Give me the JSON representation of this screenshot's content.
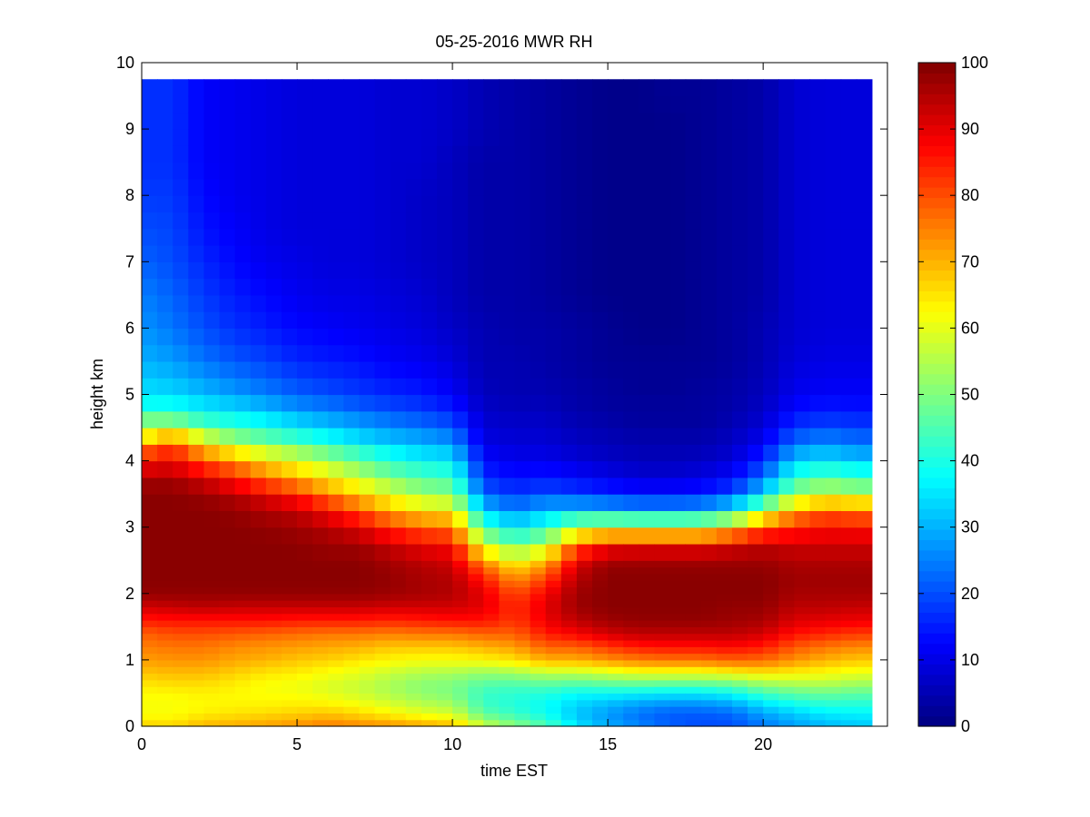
{
  "chart_data": {
    "type": "heatmap",
    "title": "05-25-2016 MWR RH",
    "xlabel": "time EST",
    "ylabel": "height km",
    "xlim": [
      0,
      24
    ],
    "ylim": [
      0,
      10
    ],
    "x_ticks": [
      0,
      5,
      10,
      15,
      20
    ],
    "y_ticks": [
      0,
      1,
      2,
      3,
      4,
      5,
      6,
      7,
      8,
      9,
      10
    ],
    "colorbar": {
      "colormap": "jet",
      "range": [
        0,
        100
      ],
      "ticks": [
        0,
        10,
        20,
        30,
        40,
        50,
        60,
        70,
        80,
        90,
        100
      ]
    },
    "time_start": 0,
    "time_step": 0.5,
    "time_count": 47,
    "height_top": 9.75,
    "profile_heights": [
      0,
      0.1,
      0.2,
      0.3,
      0.4,
      0.5,
      0.6,
      0.7,
      0.8,
      0.9,
      1.0,
      1.2,
      1.4,
      1.6,
      1.8,
      2.0,
      2.2,
      2.4,
      2.6,
      2.8,
      3.0,
      3.2,
      3.4,
      3.6,
      3.8,
      4.0,
      4.2,
      4.4,
      4.6,
      4.8,
      5.0,
      5.5,
      6.0,
      6.5,
      7.0,
      7.5,
      8.0,
      8.5,
      9.0,
      9.5
    ],
    "profiles": [
      {
        "time": 0,
        "rh": [
          68,
          64,
          62,
          62,
          62,
          63,
          64,
          66,
          68,
          70,
          72,
          75,
          78,
          85,
          92,
          98,
          99,
          99,
          99,
          99,
          99,
          99,
          99,
          98,
          93,
          87,
          75,
          60,
          50,
          40,
          35,
          30,
          27,
          25,
          22,
          20,
          18,
          17,
          17,
          17
        ]
      },
      {
        "time": 1,
        "rh": [
          67,
          64,
          62,
          62,
          62,
          63,
          65,
          67,
          69,
          71,
          73,
          76,
          80,
          86,
          93,
          98,
          99,
          99,
          99,
          99,
          99,
          99,
          99,
          98,
          94,
          89,
          82,
          68,
          50,
          40,
          34,
          28,
          24,
          22,
          20,
          19,
          18,
          17,
          17,
          17
        ]
      },
      {
        "time": 2,
        "rh": [
          70,
          67,
          64,
          63,
          63,
          64,
          65,
          67,
          69,
          71,
          73,
          76,
          80,
          86,
          94,
          98,
          99,
          99,
          99,
          99,
          99,
          99,
          98,
          95,
          88,
          80,
          68,
          55,
          43,
          36,
          31,
          24,
          20,
          18,
          16,
          14,
          13,
          12,
          12,
          12
        ]
      },
      {
        "time": 3,
        "rh": [
          71,
          68,
          65,
          64,
          63,
          63,
          64,
          65,
          67,
          69,
          71,
          74,
          79,
          86,
          93,
          98,
          99,
          99,
          99,
          99,
          99,
          98,
          96,
          90,
          82,
          73,
          60,
          48,
          40,
          34,
          28,
          21,
          17,
          15,
          13,
          12,
          11,
          11,
          11,
          11
        ]
      },
      {
        "time": 4,
        "rh": [
          72,
          69,
          66,
          64,
          63,
          62,
          62,
          63,
          65,
          67,
          70,
          73,
          78,
          86,
          93,
          98,
          99,
          99,
          99,
          99,
          98,
          96,
          92,
          84,
          74,
          66,
          54,
          44,
          37,
          31,
          25,
          19,
          15,
          13,
          11,
          10,
          10,
          10,
          10,
          10
        ]
      },
      {
        "time": 5,
        "rh": [
          74,
          70,
          67,
          65,
          63,
          62,
          61,
          62,
          64,
          66,
          68,
          72,
          77,
          85,
          93,
          98,
          99,
          99,
          99,
          98,
          97,
          94,
          88,
          78,
          68,
          60,
          50,
          40,
          33,
          27,
          22,
          16,
          13,
          11,
          10,
          9,
          9,
          9,
          9,
          9
        ]
      },
      {
        "time": 6,
        "rh": [
          76,
          72,
          68,
          65,
          62,
          60,
          59,
          60,
          62,
          64,
          67,
          71,
          76,
          85,
          93,
          98,
          99,
          99,
          98,
          97,
          94,
          89,
          80,
          70,
          62,
          54,
          45,
          36,
          30,
          25,
          20,
          15,
          12,
          10,
          9,
          9,
          9,
          9,
          9,
          9
        ]
      },
      {
        "time": 7,
        "rh": [
          75,
          70,
          66,
          63,
          60,
          58,
          57,
          58,
          60,
          62,
          65,
          70,
          76,
          85,
          93,
          98,
          99,
          99,
          98,
          95,
          90,
          82,
          72,
          63,
          55,
          48,
          40,
          32,
          27,
          22,
          18,
          14,
          11,
          10,
          9,
          9,
          9,
          9,
          9,
          9
        ]
      },
      {
        "time": 8,
        "rh": [
          74,
          68,
          63,
          60,
          57,
          55,
          54,
          55,
          57,
          60,
          63,
          68,
          75,
          84,
          92,
          97,
          98,
          97,
          95,
          90,
          83,
          73,
          64,
          56,
          48,
          42,
          35,
          29,
          24,
          20,
          16,
          12,
          10,
          9,
          8,
          8,
          8,
          8,
          8,
          8
        ]
      },
      {
        "time": 9,
        "rh": [
          72,
          66,
          60,
          57,
          54,
          52,
          51,
          52,
          55,
          58,
          62,
          68,
          76,
          85,
          92,
          96,
          96,
          95,
          92,
          86,
          78,
          68,
          58,
          50,
          44,
          38,
          32,
          27,
          22,
          18,
          15,
          11,
          9,
          8,
          7,
          7,
          7,
          8,
          8,
          8
        ]
      },
      {
        "time": 10,
        "rh": [
          70,
          64,
          58,
          55,
          52,
          50,
          50,
          51,
          54,
          58,
          62,
          68,
          76,
          86,
          92,
          95,
          95,
          93,
          90,
          84,
          76,
          66,
          56,
          48,
          42,
          36,
          30,
          24,
          19,
          15,
          12,
          9,
          7,
          6,
          6,
          6,
          6,
          6,
          7,
          7
        ]
      },
      {
        "time": 11,
        "rh": [
          58,
          52,
          47,
          44,
          43,
          43,
          45,
          48,
          52,
          57,
          63,
          70,
          78,
          86,
          90,
          90,
          86,
          78,
          67,
          55,
          45,
          35,
          27,
          20,
          16,
          13,
          11,
          9,
          8,
          7,
          6,
          5,
          5,
          4,
          4,
          4,
          4,
          4,
          5,
          5
        ]
      },
      {
        "time": 12,
        "rh": [
          52,
          47,
          43,
          41,
          41,
          42,
          44,
          48,
          53,
          59,
          65,
          72,
          78,
          82,
          83,
          80,
          74,
          66,
          56,
          45,
          36,
          28,
          21,
          16,
          13,
          11,
          9,
          8,
          7,
          6,
          5,
          5,
          4,
          4,
          4,
          4,
          4,
          4,
          4,
          4
        ]
      },
      {
        "time": 13,
        "rh": [
          46,
          42,
          39,
          38,
          39,
          41,
          45,
          50,
          56,
          63,
          70,
          78,
          85,
          89,
          90,
          88,
          82,
          74,
          64,
          52,
          42,
          33,
          25,
          18,
          14,
          11,
          9,
          8,
          7,
          6,
          5,
          4,
          4,
          3,
          3,
          3,
          3,
          3,
          3,
          3
        ]
      },
      {
        "time": 14,
        "rh": [
          36,
          33,
          32,
          33,
          35,
          38,
          43,
          49,
          56,
          63,
          70,
          78,
          88,
          94,
          97,
          97,
          95,
          92,
          85,
          72,
          55,
          38,
          24,
          16,
          12,
          9,
          7,
          6,
          5,
          4,
          4,
          3,
          3,
          2,
          2,
          2,
          2,
          2,
          2,
          2
        ]
      },
      {
        "time": 15,
        "rh": [
          30,
          28,
          28,
          30,
          33,
          38,
          44,
          51,
          58,
          65,
          73,
          82,
          92,
          97,
          99,
          99,
          99,
          98,
          93,
          80,
          58,
          38,
          22,
          14,
          10,
          7,
          6,
          5,
          4,
          3,
          3,
          2,
          2,
          1,
          1,
          1,
          1,
          1,
          1,
          1
        ]
      },
      {
        "time": 16,
        "rh": [
          26,
          24,
          24,
          27,
          31,
          37,
          44,
          52,
          60,
          68,
          75,
          85,
          94,
          98,
          99,
          99,
          99,
          98,
          94,
          80,
          58,
          36,
          20,
          12,
          8,
          6,
          5,
          4,
          3,
          3,
          2,
          2,
          1,
          1,
          1,
          1,
          1,
          1,
          1,
          1
        ]
      },
      {
        "time": 17,
        "rh": [
          22,
          21,
          22,
          25,
          30,
          36,
          43,
          52,
          60,
          68,
          76,
          86,
          94,
          98,
          99,
          99,
          99,
          98,
          94,
          80,
          58,
          36,
          20,
          12,
          8,
          6,
          5,
          4,
          3,
          3,
          2,
          2,
          1,
          1,
          1,
          1,
          1,
          1,
          1,
          2
        ]
      },
      {
        "time": 18,
        "rh": [
          20,
          20,
          22,
          25,
          30,
          36,
          43,
          52,
          60,
          68,
          76,
          86,
          94,
          98,
          99,
          99,
          99,
          98,
          94,
          80,
          58,
          37,
          21,
          13,
          9,
          7,
          5,
          4,
          3,
          3,
          3,
          2,
          2,
          2,
          2,
          2,
          2,
          2,
          2,
          2
        ]
      },
      {
        "time": 19,
        "rh": [
          20,
          21,
          23,
          27,
          32,
          38,
          45,
          53,
          62,
          70,
          78,
          87,
          94,
          97,
          98,
          99,
          99,
          98,
          95,
          85,
          65,
          44,
          27,
          17,
          12,
          9,
          7,
          6,
          5,
          4,
          4,
          3,
          3,
          3,
          3,
          3,
          3,
          3,
          3,
          3
        ]
      },
      {
        "time": 20,
        "rh": [
          24,
          26,
          29,
          33,
          38,
          44,
          50,
          57,
          64,
          71,
          77,
          85,
          92,
          96,
          98,
          99,
          99,
          98,
          96,
          90,
          78,
          60,
          42,
          30,
          22,
          17,
          13,
          10,
          8,
          7,
          6,
          5,
          5,
          4,
          4,
          4,
          4,
          4,
          4,
          4
        ]
      },
      {
        "time": 21,
        "rh": [
          28,
          30,
          33,
          37,
          42,
          47,
          52,
          58,
          63,
          68,
          73,
          79,
          86,
          91,
          94,
          96,
          97,
          96,
          94,
          90,
          84,
          74,
          60,
          48,
          40,
          33,
          26,
          20,
          16,
          13,
          11,
          9,
          8,
          8,
          8,
          8,
          8,
          8,
          8,
          8
        ]
      },
      {
        "time": 22,
        "rh": [
          30,
          33,
          36,
          40,
          44,
          48,
          53,
          58,
          62,
          66,
          70,
          76,
          84,
          90,
          94,
          96,
          97,
          96,
          94,
          91,
          87,
          80,
          66,
          53,
          44,
          36,
          29,
          23,
          18,
          15,
          12,
          10,
          9,
          9,
          9,
          9,
          9,
          9,
          9,
          9
        ]
      },
      {
        "time": 23,
        "rh": [
          32,
          34,
          37,
          40,
          43,
          47,
          51,
          56,
          60,
          64,
          68,
          74,
          82,
          89,
          93,
          96,
          97,
          96,
          94,
          91,
          86,
          78,
          64,
          50,
          41,
          33,
          26,
          21,
          17,
          14,
          12,
          10,
          9,
          9,
          9,
          9,
          9,
          9,
          9,
          9
        ]
      }
    ]
  }
}
